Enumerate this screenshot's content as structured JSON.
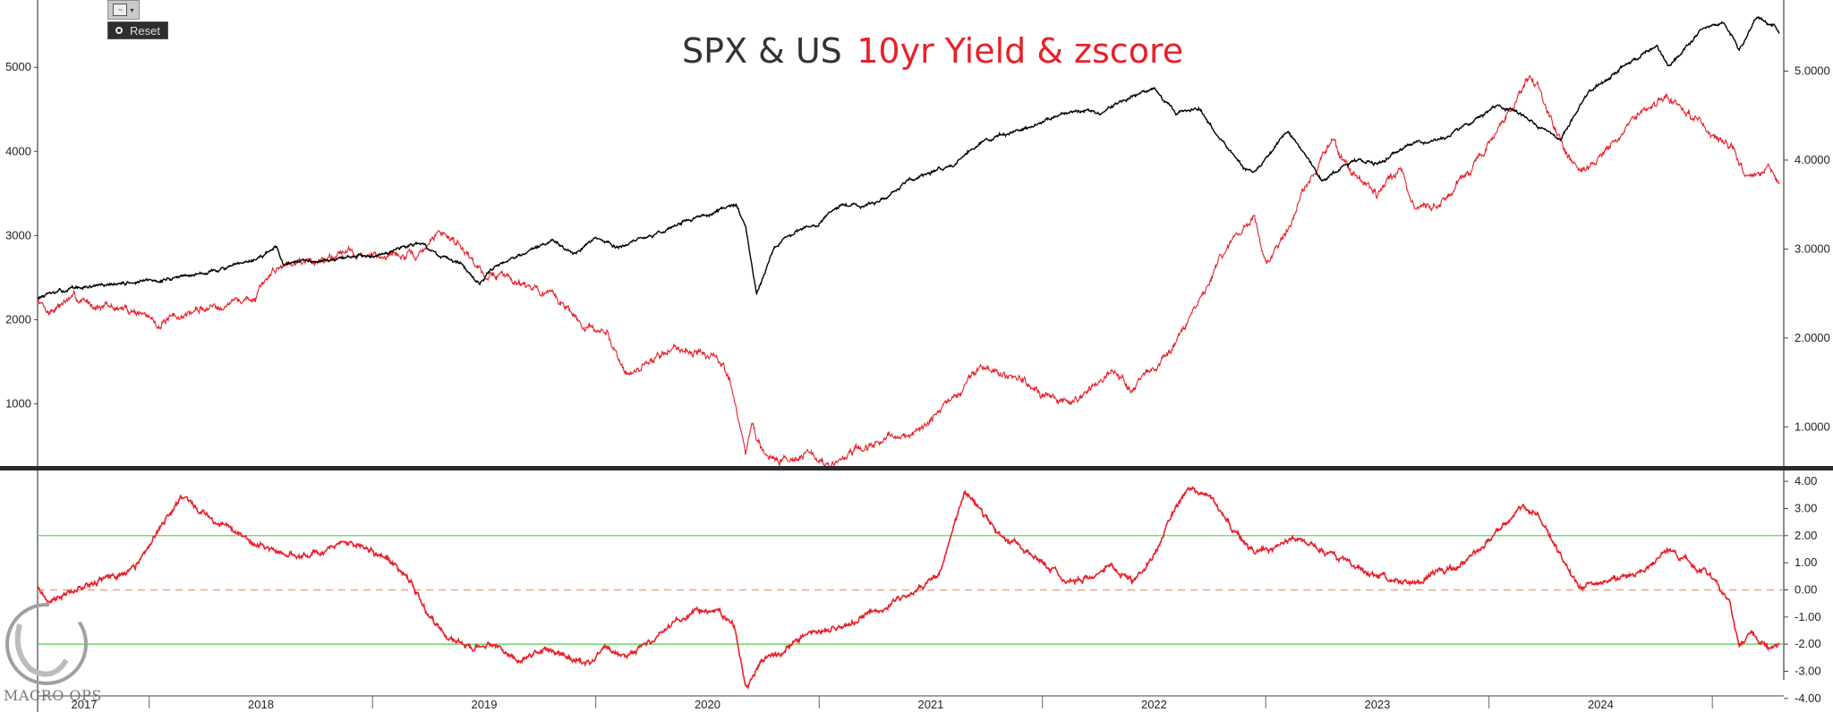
{
  "title": {
    "part1": "SPX & US",
    "part2": "10yr Yield & zscore"
  },
  "toolbar": {
    "chart_icon": "chart-line-icon",
    "reset_label": "Reset"
  },
  "watermark": {
    "text": "MACRO OPS"
  },
  "colors": {
    "spx": "#000000",
    "yield": "#e8202a",
    "zscore": "#e8202a",
    "band": "#52c84e",
    "zero": "#e89a6e",
    "divider": "#2b2b2b"
  },
  "chart_data": [
    {
      "type": "line",
      "y_left": {
        "lim": [
          250,
          5800
        ],
        "ticks": [
          "1000",
          "2000",
          "3000",
          "4000",
          "5000"
        ]
      },
      "y_right": {
        "lim": [
          0.55,
          5.8
        ],
        "ticks": [
          "1.0000",
          "2.0000",
          "3.0000",
          "4.0000",
          "5.0000"
        ]
      },
      "x_labels": [
        "2017",
        "2018",
        "2019",
        "2020",
        "2021",
        "2022",
        "2023",
        "2024"
      ],
      "series": [
        {
          "axis": "left",
          "points": [
            [
              2017.0,
              2260
            ],
            [
              2017.15,
              2370
            ],
            [
              2017.35,
              2420
            ],
            [
              2017.55,
              2470
            ],
            [
              2017.75,
              2560
            ],
            [
              2017.95,
              2680
            ],
            [
              2018.07,
              2860
            ],
            [
              2018.1,
              2640
            ],
            [
              2018.2,
              2700
            ],
            [
              2018.35,
              2720
            ],
            [
              2018.55,
              2800
            ],
            [
              2018.72,
              2920
            ],
            [
              2018.8,
              2750
            ],
            [
              2018.9,
              2640
            ],
            [
              2018.98,
              2410
            ],
            [
              2019.05,
              2650
            ],
            [
              2019.2,
              2820
            ],
            [
              2019.3,
              2930
            ],
            [
              2019.4,
              2780
            ],
            [
              2019.5,
              2960
            ],
            [
              2019.6,
              2860
            ],
            [
              2019.7,
              2960
            ],
            [
              2019.8,
              3050
            ],
            [
              2019.9,
              3180
            ],
            [
              2020.0,
              3250
            ],
            [
              2020.13,
              3380
            ],
            [
              2020.17,
              3100
            ],
            [
              2020.22,
              2300
            ],
            [
              2020.3,
              2850
            ],
            [
              2020.4,
              3050
            ],
            [
              2020.5,
              3150
            ],
            [
              2020.6,
              3380
            ],
            [
              2020.7,
              3350
            ],
            [
              2020.8,
              3450
            ],
            [
              2020.9,
              3650
            ],
            [
              2021.0,
              3750
            ],
            [
              2021.1,
              3850
            ],
            [
              2021.25,
              4150
            ],
            [
              2021.4,
              4250
            ],
            [
              2021.5,
              4350
            ],
            [
              2021.65,
              4500
            ],
            [
              2021.75,
              4450
            ],
            [
              2021.85,
              4600
            ],
            [
              2022.0,
              4750
            ],
            [
              2022.1,
              4450
            ],
            [
              2022.2,
              4500
            ],
            [
              2022.3,
              4150
            ],
            [
              2022.4,
              3800
            ],
            [
              2022.45,
              3750
            ],
            [
              2022.6,
              4250
            ],
            [
              2022.75,
              3650
            ],
            [
              2022.9,
              3900
            ],
            [
              2023.0,
              3850
            ],
            [
              2023.15,
              4100
            ],
            [
              2023.3,
              4150
            ],
            [
              2023.45,
              4400
            ],
            [
              2023.55,
              4550
            ],
            [
              2023.7,
              4350
            ],
            [
              2023.82,
              4150
            ],
            [
              2023.95,
              4700
            ],
            [
              2024.1,
              5000
            ],
            [
              2024.25,
              5250
            ],
            [
              2024.3,
              5000
            ],
            [
              2024.45,
              5450
            ],
            [
              2024.55,
              5550
            ],
            [
              2024.62,
              5200
            ],
            [
              2024.7,
              5600
            ],
            [
              2024.78,
              5500
            ],
            [
              2024.8,
              5400
            ]
          ]
        },
        {
          "axis": "right",
          "points": [
            [
              2017.0,
              2.45
            ],
            [
              2017.05,
              2.3
            ],
            [
              2017.15,
              2.45
            ],
            [
              2017.3,
              2.35
            ],
            [
              2017.45,
              2.3
            ],
            [
              2017.55,
              2.15
            ],
            [
              2017.7,
              2.3
            ],
            [
              2017.85,
              2.4
            ],
            [
              2017.98,
              2.45
            ],
            [
              2018.05,
              2.75
            ],
            [
              2018.15,
              2.9
            ],
            [
              2018.25,
              2.85
            ],
            [
              2018.38,
              3.0
            ],
            [
              2018.48,
              2.9
            ],
            [
              2018.58,
              2.95
            ],
            [
              2018.7,
              2.9
            ],
            [
              2018.8,
              3.2
            ],
            [
              2018.9,
              3.05
            ],
            [
              2019.0,
              2.7
            ],
            [
              2019.1,
              2.7
            ],
            [
              2019.2,
              2.6
            ],
            [
              2019.35,
              2.4
            ],
            [
              2019.45,
              2.1
            ],
            [
              2019.55,
              2.05
            ],
            [
              2019.65,
              1.55
            ],
            [
              2019.75,
              1.75
            ],
            [
              2019.85,
              1.9
            ],
            [
              2019.95,
              1.85
            ],
            [
              2020.05,
              1.75
            ],
            [
              2020.1,
              1.55
            ],
            [
              2020.17,
              0.7
            ],
            [
              2020.2,
              1.05
            ],
            [
              2020.25,
              0.65
            ],
            [
              2020.35,
              0.65
            ],
            [
              2020.45,
              0.7
            ],
            [
              2020.55,
              0.55
            ],
            [
              2020.65,
              0.7
            ],
            [
              2020.75,
              0.8
            ],
            [
              2020.85,
              0.9
            ],
            [
              2020.95,
              0.95
            ],
            [
              2021.05,
              1.2
            ],
            [
              2021.15,
              1.45
            ],
            [
              2021.22,
              1.7
            ],
            [
              2021.3,
              1.6
            ],
            [
              2021.4,
              1.55
            ],
            [
              2021.5,
              1.35
            ],
            [
              2021.6,
              1.25
            ],
            [
              2021.7,
              1.4
            ],
            [
              2021.8,
              1.6
            ],
            [
              2021.9,
              1.45
            ],
            [
              2022.0,
              1.65
            ],
            [
              2022.1,
              1.95
            ],
            [
              2022.2,
              2.4
            ],
            [
              2022.3,
              2.9
            ],
            [
              2022.45,
              3.4
            ],
            [
              2022.5,
              2.85
            ],
            [
              2022.6,
              3.2
            ],
            [
              2022.7,
              3.8
            ],
            [
              2022.8,
              4.2
            ],
            [
              2022.88,
              3.9
            ],
            [
              2023.0,
              3.6
            ],
            [
              2023.1,
              3.9
            ],
            [
              2023.17,
              3.4
            ],
            [
              2023.3,
              3.55
            ],
            [
              2023.4,
              3.85
            ],
            [
              2023.5,
              4.2
            ],
            [
              2023.6,
              4.6
            ],
            [
              2023.68,
              4.95
            ],
            [
              2023.72,
              4.85
            ],
            [
              2023.8,
              4.3
            ],
            [
              2023.9,
              3.85
            ],
            [
              2024.0,
              4.05
            ],
            [
              2024.1,
              4.3
            ],
            [
              2024.2,
              4.6
            ],
            [
              2024.3,
              4.7
            ],
            [
              2024.4,
              4.5
            ],
            [
              2024.5,
              4.3
            ],
            [
              2024.6,
              4.1
            ],
            [
              2024.65,
              3.85
            ],
            [
              2024.72,
              3.85
            ],
            [
              2024.75,
              3.95
            ],
            [
              2024.8,
              3.75
            ]
          ]
        }
      ]
    },
    {
      "type": "line",
      "y_right": {
        "lim": [
          -4.5,
          4.4
        ],
        "ticks": [
          "4.00",
          "3.00",
          "2.00",
          "1.00",
          "0.00",
          "-1.00",
          "-2.00",
          "-3.00",
          "-4.00"
        ]
      },
      "reference_lines": [
        2.0,
        0.0,
        -2.0
      ],
      "series": [
        {
          "points": [
            [
              2017.0,
              0.2
            ],
            [
              2017.05,
              -0.5
            ],
            [
              2017.15,
              0.0
            ],
            [
              2017.25,
              0.3
            ],
            [
              2017.35,
              0.5
            ],
            [
              2017.45,
              0.9
            ],
            [
              2017.55,
              2.3
            ],
            [
              2017.65,
              3.5
            ],
            [
              2017.75,
              2.8
            ],
            [
              2017.85,
              2.3
            ],
            [
              2017.95,
              1.8
            ],
            [
              2018.05,
              1.5
            ],
            [
              2018.15,
              1.2
            ],
            [
              2018.25,
              1.4
            ],
            [
              2018.35,
              1.7
            ],
            [
              2018.45,
              1.6
            ],
            [
              2018.55,
              1.2
            ],
            [
              2018.65,
              0.6
            ],
            [
              2018.75,
              -1.0
            ],
            [
              2018.85,
              -1.8
            ],
            [
              2018.95,
              -2.2
            ],
            [
              2019.05,
              -2.0
            ],
            [
              2019.15,
              -2.6
            ],
            [
              2019.25,
              -2.2
            ],
            [
              2019.35,
              -2.4
            ],
            [
              2019.45,
              -2.7
            ],
            [
              2019.55,
              -2.2
            ],
            [
              2019.65,
              -2.4
            ],
            [
              2019.75,
              -1.8
            ],
            [
              2019.85,
              -1.2
            ],
            [
              2019.95,
              -0.8
            ],
            [
              2020.05,
              -0.8
            ],
            [
              2020.12,
              -1.4
            ],
            [
              2020.17,
              -3.6
            ],
            [
              2020.25,
              -2.6
            ],
            [
              2020.35,
              -2.2
            ],
            [
              2020.45,
              -1.6
            ],
            [
              2020.55,
              -1.5
            ],
            [
              2020.65,
              -1.2
            ],
            [
              2020.75,
              -0.8
            ],
            [
              2020.85,
              -0.4
            ],
            [
              2020.95,
              0.1
            ],
            [
              2021.05,
              0.8
            ],
            [
              2021.15,
              3.6
            ],
            [
              2021.22,
              3.0
            ],
            [
              2021.3,
              2.0
            ],
            [
              2021.4,
              1.6
            ],
            [
              2021.5,
              1.0
            ],
            [
              2021.6,
              0.4
            ],
            [
              2021.7,
              0.4
            ],
            [
              2021.8,
              0.9
            ],
            [
              2021.9,
              0.2
            ],
            [
              2022.0,
              1.2
            ],
            [
              2022.08,
              2.8
            ],
            [
              2022.15,
              3.7
            ],
            [
              2022.25,
              3.4
            ],
            [
              2022.35,
              2.2
            ],
            [
              2022.45,
              1.4
            ],
            [
              2022.55,
              1.6
            ],
            [
              2022.65,
              2.0
            ],
            [
              2022.75,
              1.5
            ],
            [
              2022.85,
              1.1
            ],
            [
              2022.95,
              0.6
            ],
            [
              2023.05,
              0.4
            ],
            [
              2023.15,
              0.2
            ],
            [
              2023.25,
              0.6
            ],
            [
              2023.35,
              0.8
            ],
            [
              2023.45,
              1.4
            ],
            [
              2023.55,
              2.2
            ],
            [
              2023.65,
              3.0
            ],
            [
              2023.72,
              2.8
            ],
            [
              2023.8,
              1.5
            ],
            [
              2023.9,
              0.2
            ],
            [
              2024.0,
              0.2
            ],
            [
              2024.1,
              0.4
            ],
            [
              2024.2,
              0.8
            ],
            [
              2024.3,
              1.4
            ],
            [
              2024.4,
              1.0
            ],
            [
              2024.5,
              0.5
            ],
            [
              2024.58,
              -0.6
            ],
            [
              2024.62,
              -2.0
            ],
            [
              2024.68,
              -1.6
            ],
            [
              2024.75,
              -2.1
            ],
            [
              2024.8,
              -2.0
            ]
          ]
        }
      ]
    }
  ]
}
